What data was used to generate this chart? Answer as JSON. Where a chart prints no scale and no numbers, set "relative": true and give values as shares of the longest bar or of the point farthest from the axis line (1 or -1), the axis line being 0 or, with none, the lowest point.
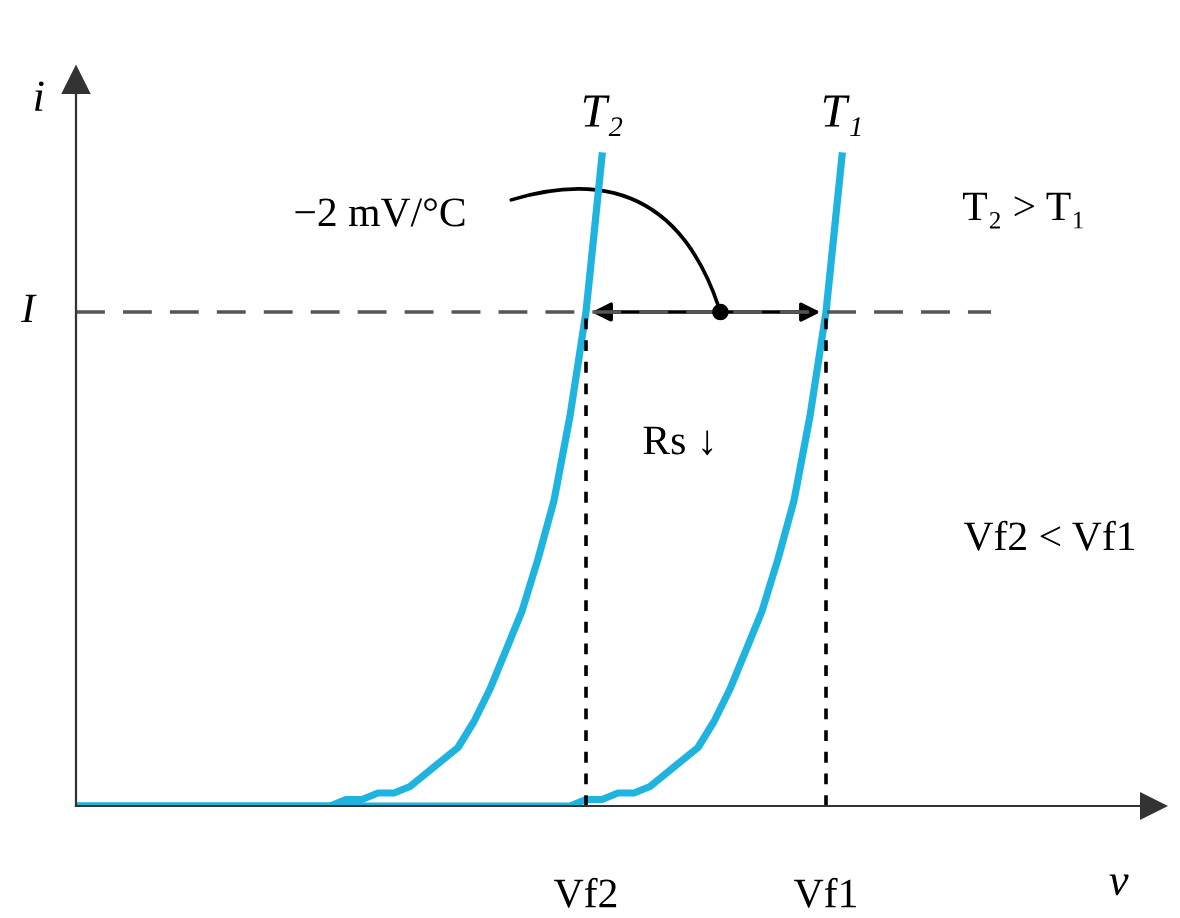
{
  "chart_data": {
    "type": "line",
    "relative": true,
    "xlabel": "v",
    "ylabel": "i",
    "legend": false,
    "marker": "none",
    "line_style": "solid",
    "categories": [
      null,
      null,
      null,
      null,
      null,
      null,
      null,
      null,
      null,
      null,
      null,
      null,
      null,
      null,
      null,
      null,
      null,
      null,
      null,
      null,
      null,
      null,
      null,
      null,
      null,
      null,
      null,
      null,
      null,
      null,
      null,
      null,
      "Vf2",
      null,
      null,
      null,
      null,
      null,
      null,
      null,
      null,
      null,
      null,
      null,
      null,
      null,
      null,
      "Vf1",
      null,
      null,
      null,
      null,
      null,
      null,
      null,
      null,
      null,
      null,
      null,
      null,
      null,
      null,
      null,
      null,
      null,
      null,
      null,
      null
    ],
    "series": [
      {
        "name": "T₂",
        "color": "#1fb4e0",
        "values": [
          0,
          0,
          0,
          0,
          0,
          0,
          0,
          0,
          0,
          0,
          0,
          0,
          0,
          0,
          0,
          0,
          0,
          0.01,
          0.01,
          0.02,
          0.02,
          0.03,
          0.05,
          0.07,
          0.09,
          0.13,
          0.18,
          0.24,
          0.3,
          0.38,
          0.47,
          0.6,
          0.76,
          1,
          null,
          null,
          null,
          null,
          null,
          null,
          null,
          null,
          null,
          null,
          null,
          null,
          null,
          null,
          null,
          null,
          null,
          null,
          null,
          null,
          null,
          null,
          null,
          null,
          null,
          null,
          null,
          null,
          null,
          null,
          null,
          null,
          null,
          null
        ]
      },
      {
        "name": "T₁",
        "color": "#1fb4e0",
        "values": [
          0,
          0,
          0,
          0,
          0,
          0,
          0,
          0,
          0,
          0,
          0,
          0,
          0,
          0,
          0,
          0,
          0,
          0,
          0,
          0,
          0,
          0,
          0,
          0,
          0,
          0,
          0,
          0,
          0,
          0,
          0,
          0,
          0.01,
          0.01,
          0.02,
          0.02,
          0.03,
          0.05,
          0.07,
          0.09,
          0.13,
          0.18,
          0.24,
          0.3,
          0.38,
          0.47,
          0.6,
          0.76,
          1,
          null,
          null,
          null,
          null,
          null,
          null,
          null,
          null,
          null,
          null,
          null,
          null,
          null,
          null,
          null,
          null,
          null,
          null,
          null
        ]
      }
    ],
    "ref_lines": [
      {
        "axis": "y",
        "value": 0.76,
        "label": "I",
        "color": "#555555",
        "line_style": "dashed"
      },
      {
        "axis": "x",
        "value": "Vf2",
        "color": "#000000",
        "line_style": "dotted"
      },
      {
        "axis": "x",
        "value": "Vf1",
        "color": "#000000",
        "line_style": "dotted"
      }
    ],
    "annotations": [
      "−2 mV/°C",
      "T₂ > T₁",
      "Rs ↓",
      "Vf2 < Vf1"
    ]
  }
}
